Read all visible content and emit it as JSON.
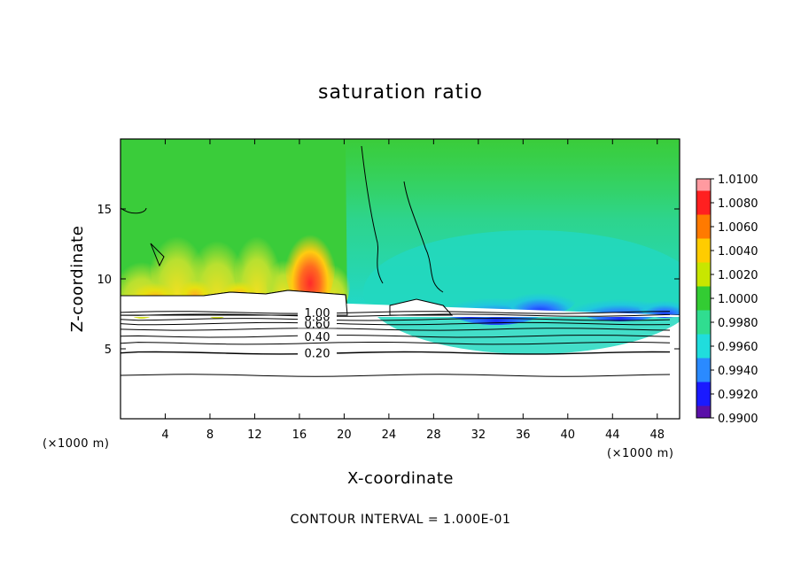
{
  "chart_data": {
    "type": "heatmap",
    "title": "saturation ratio",
    "xlabel": "X-coordinate",
    "ylabel": "Z-coordinate",
    "x_unit_left": "(×1000 m)",
    "x_unit_right": "(×1000 m)",
    "xlim": [
      0,
      50
    ],
    "ylim": [
      0,
      20
    ],
    "xticks": [
      "4",
      "8",
      "12",
      "16",
      "20",
      "24",
      "28",
      "32",
      "36",
      "40",
      "44",
      "48"
    ],
    "xtick_values": [
      4,
      8,
      12,
      16,
      20,
      24,
      28,
      32,
      36,
      40,
      44,
      48
    ],
    "yticks": [
      "5",
      "10",
      "15"
    ],
    "ytick_values": [
      5,
      10,
      15
    ],
    "colorbar": {
      "labels": [
        "1.0100",
        "1.0080",
        "1.0060",
        "1.0040",
        "1.0020",
        "1.0000",
        "0.9980",
        "0.9960",
        "0.9940",
        "0.9920",
        "0.9900"
      ],
      "values": [
        1.01,
        1.008,
        1.006,
        1.004,
        1.002,
        1.0,
        0.998,
        0.996,
        0.994,
        0.992,
        0.99
      ],
      "colors": [
        "#ff9aa0",
        "#ff2020",
        "#ff7a00",
        "#ffcc00",
        "#c8e600",
        "#33cc33",
        "#30dd90",
        "#20dddd",
        "#2a8aff",
        "#1a1aff",
        "#5a10a8"
      ]
    },
    "contour_labels": [
      "0.20",
      "0.40",
      "0.60",
      "0.80",
      "1.00"
    ],
    "contour_label_values": [
      0.2,
      0.4,
      0.6,
      0.8,
      1.0
    ],
    "contour_levels_below": [
      0.1,
      0.2,
      0.3,
      0.4,
      0.5,
      0.6,
      0.7,
      0.8,
      0.9
    ],
    "contour_level_heights_km": [
      3.1,
      4.7,
      5.4,
      5.9,
      6.4,
      6.8,
      7.1,
      7.4,
      7.6
    ],
    "footer": "CONTOUR INTERVAL = 1.000E-01"
  }
}
